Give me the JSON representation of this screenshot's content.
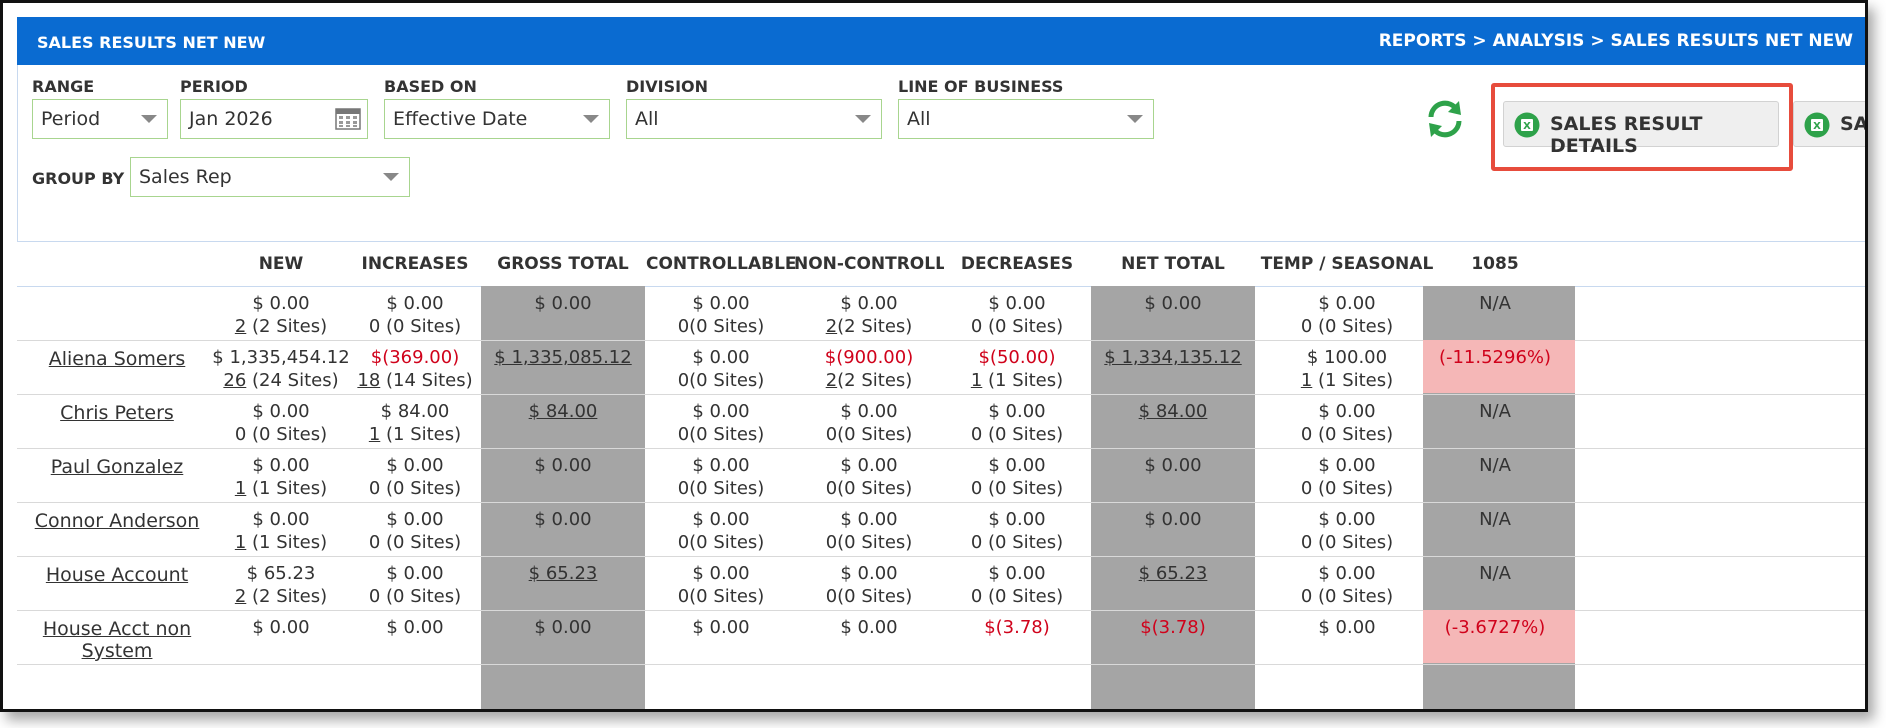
{
  "page": {
    "title": "SALES RESULTS NET NEW",
    "breadcrumb": "REPORTS > ANALYSIS > SALES RESULTS NET NEW"
  },
  "filters": {
    "range": {
      "label": "RANGE",
      "value": "Period"
    },
    "period": {
      "label": "PERIOD",
      "value": "Jan 2026"
    },
    "based_on": {
      "label": "BASED ON",
      "value": "Effective Date"
    },
    "division": {
      "label": "DIVISION",
      "value": "All"
    },
    "line_of_business": {
      "label": "LINE OF BUSINESS",
      "value": "All"
    },
    "group_by": {
      "label": "GROUP BY",
      "value": "Sales Rep"
    }
  },
  "toolbar": {
    "sales_result_details": "SALES RESULT DETAILS",
    "second_button": "SALES"
  },
  "table": {
    "columns": [
      "NEW",
      "INCREASES",
      "GROSS TOTAL",
      "CONTROLLABLE",
      "NON-CONTROLLA...",
      "DECREASES",
      "NET TOTAL",
      "TEMP / SEASONAL",
      "1085"
    ],
    "rows": [
      {
        "name": "",
        "cells": [
          {
            "v": "$ 0.00",
            "n": "2",
            "s": " (2 Sites)"
          },
          {
            "v": "$ 0.00",
            "n": "",
            "s": "0 (0 Sites)"
          },
          {
            "v": "$ 0.00",
            "n": "",
            "s": ""
          },
          {
            "v": "$ 0.00",
            "n": "",
            "s": "0(0 Sites)"
          },
          {
            "v": "$ 0.00",
            "n": "2",
            "s": "(2 Sites)"
          },
          {
            "v": "$ 0.00",
            "n": "",
            "s": "0 (0 Sites)"
          },
          {
            "v": "$ 0.00",
            "n": "",
            "s": ""
          },
          {
            "v": "$ 0.00",
            "n": "",
            "s": "0 (0 Sites)"
          },
          {
            "v": "N/A",
            "n": "",
            "s": ""
          }
        ]
      },
      {
        "name": "Aliena Somers",
        "cells": [
          {
            "v": "$ 1,335,454.12",
            "n": "26",
            "s": " (24 Sites)"
          },
          {
            "v": "$(369.00)",
            "n": "18",
            "s": " (14 Sites)"
          },
          {
            "v": "$ 1,335,085.12",
            "n": "",
            "s": ""
          },
          {
            "v": "$ 0.00",
            "n": "",
            "s": "0(0 Sites)"
          },
          {
            "v": "$(900.00)",
            "n": "2",
            "s": "(2 Sites)"
          },
          {
            "v": "$(50.00)",
            "n": "1",
            "s": " (1 Sites)"
          },
          {
            "v": "$ 1,334,135.12",
            "n": "",
            "s": ""
          },
          {
            "v": "$ 100.00",
            "n": "1",
            "s": " (1 Sites)"
          },
          {
            "v": "(-11.5296%)",
            "n": "",
            "s": ""
          }
        ]
      },
      {
        "name": "Chris Peters",
        "cells": [
          {
            "v": "$ 0.00",
            "n": "",
            "s": "0 (0 Sites)"
          },
          {
            "v": "$ 84.00",
            "n": "1",
            "s": " (1 Sites)"
          },
          {
            "v": "$ 84.00",
            "n": "",
            "s": ""
          },
          {
            "v": "$ 0.00",
            "n": "",
            "s": "0(0 Sites)"
          },
          {
            "v": "$ 0.00",
            "n": "",
            "s": "0(0 Sites)"
          },
          {
            "v": "$ 0.00",
            "n": "",
            "s": "0 (0 Sites)"
          },
          {
            "v": "$ 84.00",
            "n": "",
            "s": ""
          },
          {
            "v": "$ 0.00",
            "n": "",
            "s": "0 (0 Sites)"
          },
          {
            "v": "N/A",
            "n": "",
            "s": ""
          }
        ]
      },
      {
        "name": "Paul Gonzalez",
        "cells": [
          {
            "v": "$ 0.00",
            "n": "1",
            "s": " (1 Sites)"
          },
          {
            "v": "$ 0.00",
            "n": "",
            "s": "0 (0 Sites)"
          },
          {
            "v": "$ 0.00",
            "n": "",
            "s": ""
          },
          {
            "v": "$ 0.00",
            "n": "",
            "s": "0(0 Sites)"
          },
          {
            "v": "$ 0.00",
            "n": "",
            "s": "0(0 Sites)"
          },
          {
            "v": "$ 0.00",
            "n": "",
            "s": "0 (0 Sites)"
          },
          {
            "v": "$ 0.00",
            "n": "",
            "s": ""
          },
          {
            "v": "$ 0.00",
            "n": "",
            "s": "0 (0 Sites)"
          },
          {
            "v": "N/A",
            "n": "",
            "s": ""
          }
        ]
      },
      {
        "name": "Connor Anderson",
        "cells": [
          {
            "v": "$ 0.00",
            "n": "1",
            "s": " (1 Sites)"
          },
          {
            "v": "$ 0.00",
            "n": "",
            "s": "0 (0 Sites)"
          },
          {
            "v": "$ 0.00",
            "n": "",
            "s": ""
          },
          {
            "v": "$ 0.00",
            "n": "",
            "s": "0(0 Sites)"
          },
          {
            "v": "$ 0.00",
            "n": "",
            "s": "0(0 Sites)"
          },
          {
            "v": "$ 0.00",
            "n": "",
            "s": "0 (0 Sites)"
          },
          {
            "v": "$ 0.00",
            "n": "",
            "s": ""
          },
          {
            "v": "$ 0.00",
            "n": "",
            "s": "0 (0 Sites)"
          },
          {
            "v": "N/A",
            "n": "",
            "s": ""
          }
        ]
      },
      {
        "name": "House Account",
        "cells": [
          {
            "v": "$ 65.23",
            "n": "2",
            "s": " (2 Sites)"
          },
          {
            "v": "$ 0.00",
            "n": "",
            "s": "0 (0 Sites)"
          },
          {
            "v": "$ 65.23",
            "n": "",
            "s": ""
          },
          {
            "v": "$ 0.00",
            "n": "",
            "s": "0(0 Sites)"
          },
          {
            "v": "$ 0.00",
            "n": "",
            "s": "0(0 Sites)"
          },
          {
            "v": "$ 0.00",
            "n": "",
            "s": "0 (0 Sites)"
          },
          {
            "v": "$ 65.23",
            "n": "",
            "s": ""
          },
          {
            "v": "$ 0.00",
            "n": "",
            "s": "0 (0 Sites)"
          },
          {
            "v": "N/A",
            "n": "",
            "s": ""
          }
        ]
      },
      {
        "name": "House Acct non System",
        "cells": [
          {
            "v": "$ 0.00",
            "n": "",
            "s": ""
          },
          {
            "v": "$ 0.00",
            "n": "",
            "s": ""
          },
          {
            "v": "$ 0.00",
            "n": "",
            "s": ""
          },
          {
            "v": "$ 0.00",
            "n": "",
            "s": ""
          },
          {
            "v": "$ 0.00",
            "n": "",
            "s": ""
          },
          {
            "v": "$(3.78)",
            "n": "",
            "s": ""
          },
          {
            "v": "$(3.78)",
            "n": "",
            "s": ""
          },
          {
            "v": "$ 0.00",
            "n": "",
            "s": ""
          },
          {
            "v": "(-3.6727%)",
            "n": "",
            "s": ""
          }
        ]
      }
    ]
  },
  "colors": {
    "header_blue": "#0a6bd1",
    "highlight_red": "#e74c3c",
    "negative_red": "#d0021b",
    "total_grey": "#a5a5a5",
    "negative_pct_pink": "#f5b7b7",
    "field_border_green": "#a8d58f"
  },
  "icons": [
    "calendar-icon",
    "refresh-icon",
    "excel-icon",
    "chevron-down-icon"
  ]
}
